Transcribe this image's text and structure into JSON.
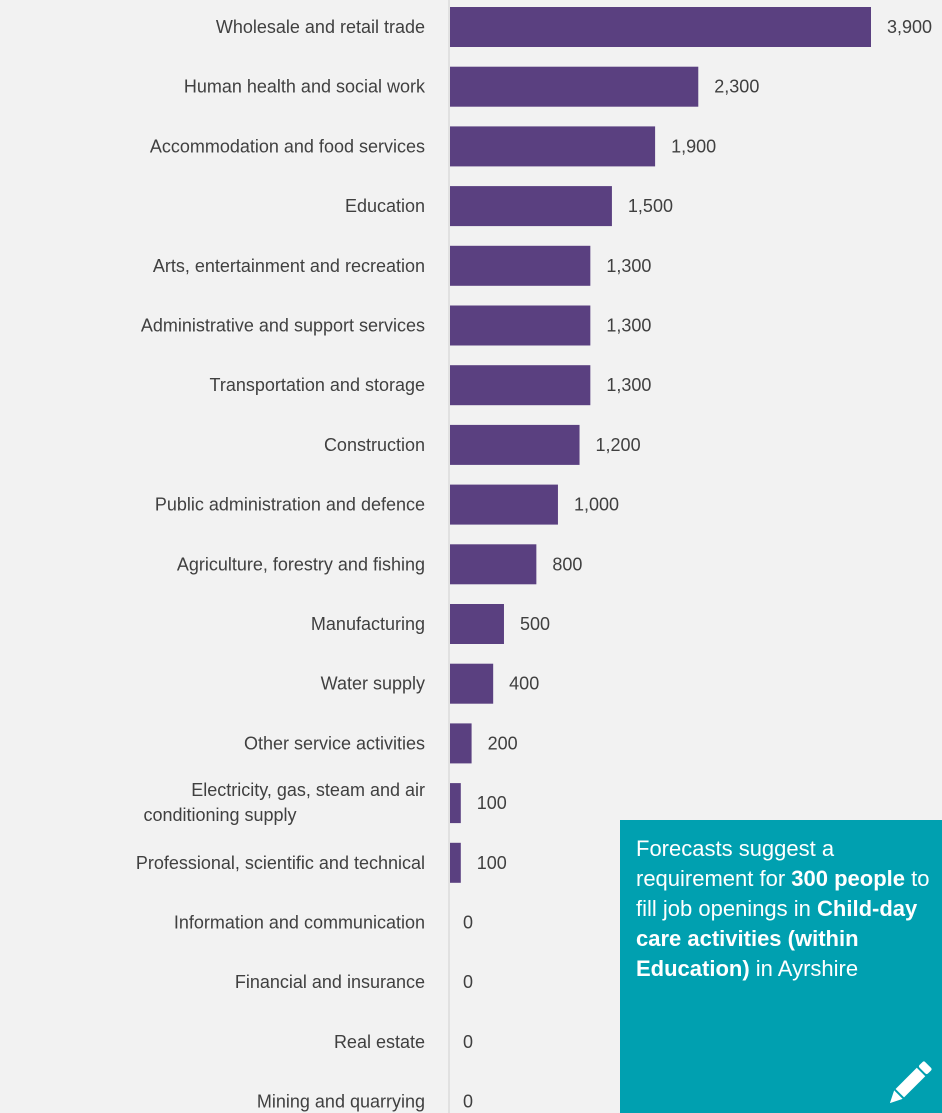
{
  "chart_data": {
    "type": "bar",
    "orientation": "horizontal",
    "bar_color": "#5a4080",
    "categories": [
      "Wholesale and retail trade",
      "Human health and social work",
      "Accommodation and food services",
      "Education",
      "Arts, entertainment and recreation",
      "Administrative and support services",
      "Transportation and storage",
      "Construction",
      "Public administration and defence",
      "Agriculture, forestry and fishing",
      "Manufacturing",
      "Water supply",
      "Other service activities",
      "Electricity, gas, steam and air conditioning supply",
      "Professional, scientific and technical",
      "Information and communication",
      "Financial and insurance",
      "Real estate",
      "Mining and quarrying"
    ],
    "values": [
      3900,
      2300,
      1900,
      1500,
      1300,
      1300,
      1300,
      1200,
      1000,
      800,
      500,
      400,
      200,
      100,
      100,
      0,
      0,
      0,
      0
    ],
    "value_labels": [
      "3,900",
      "2,300",
      "1,900",
      "1,500",
      "1,300",
      "1,300",
      "1,300",
      "1,200",
      "1,000",
      "800",
      "500",
      "400",
      "200",
      "100",
      "100",
      "0",
      "0",
      "0",
      "0"
    ],
    "xlim": [
      0,
      3900
    ]
  },
  "callout": {
    "background": "#00a0b0",
    "t1": "Forecasts suggest a requirement for ",
    "b1": "300 people",
    "t2": " to fill job openings in ",
    "b2": "Child-day care activities (within Education)",
    "t3": " in Ayrshire",
    "icon": "pencil-icon"
  }
}
